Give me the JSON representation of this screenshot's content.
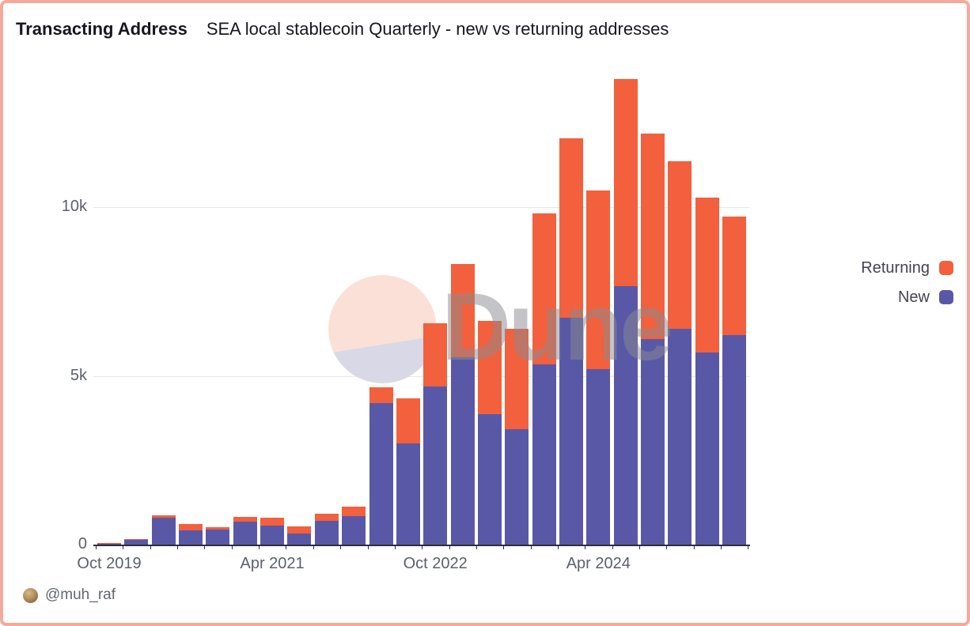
{
  "header": {
    "title": "Transacting Address",
    "subtitle": "SEA local stablecoin Quarterly - new vs returning addresses"
  },
  "watermark": {
    "text": "Dune"
  },
  "footer": {
    "author": "@muh_raf",
    "avatar_icon": "dog-avatar"
  },
  "colors": {
    "background": "#FFFFFF",
    "frame": "#F5A99A",
    "new": "#5958A7",
    "returning": "#F2603D",
    "grid": "#E8E8EC",
    "axis_line": "#2E2E38",
    "title_text": "#17171D",
    "tick_text": "#5C6068",
    "legend_text": "#43444D",
    "watermark_pink": "#FBE0D8",
    "watermark_lavender": "#D9D8E7",
    "watermark_text": "#8A8A90",
    "footer_text": "#62666D"
  },
  "chart_data": {
    "type": "bar",
    "stacked": true,
    "title": "Transacting Address — SEA local stablecoin Quarterly - new vs returning addresses",
    "xlabel": "",
    "ylabel": "",
    "ylim": [
      0,
      14000
    ],
    "grid": true,
    "legend_position": "right",
    "categories": [
      "Oct 2019",
      "Jan 2020",
      "Apr 2020",
      "Jul 2020",
      "Oct 2020",
      "Jan 2021",
      "Apr 2021",
      "Jul 2021",
      "Oct 2021",
      "Jan 2022",
      "Apr 2022",
      "Jul 2022",
      "Oct 2022",
      "Jan 2023",
      "Apr 2023",
      "Jul 2023",
      "Oct 2023",
      "Jan 2024",
      "Apr 2024",
      "Jul 2024",
      "Oct 2024",
      "Jan 2025",
      "Apr 2025",
      "Jul 2025"
    ],
    "series": [
      {
        "name": "New",
        "color": "#5958A7",
        "values": [
          40,
          140,
          800,
          410,
          435,
          680,
          565,
          330,
          700,
          840,
          4200,
          3000,
          4680,
          5550,
          3860,
          3420,
          5340,
          6720,
          5200,
          7660,
          6090,
          6390,
          5690,
          6210
        ]
      },
      {
        "name": "Returning",
        "color": "#F2603D",
        "values": [
          10,
          25,
          70,
          205,
          85,
          140,
          220,
          215,
          205,
          295,
          460,
          1330,
          1880,
          2760,
          2770,
          2980,
          4470,
          5320,
          5290,
          6130,
          6090,
          4970,
          4590,
          3510
        ]
      }
    ],
    "legend": [
      {
        "label": "Returning",
        "color": "#F2603D"
      },
      {
        "label": "New",
        "color": "#5958A7"
      }
    ],
    "y_ticks": [
      {
        "value": 0,
        "label": "0"
      },
      {
        "value": 5000,
        "label": "5k"
      },
      {
        "value": 10000,
        "label": "10k"
      }
    ],
    "x_ticks": [
      {
        "index": 0,
        "label": "Oct 2019"
      },
      {
        "index": 6,
        "label": "Apr 2021"
      },
      {
        "index": 12,
        "label": "Oct 2022"
      },
      {
        "index": 18,
        "label": "Apr 2024"
      }
    ]
  }
}
